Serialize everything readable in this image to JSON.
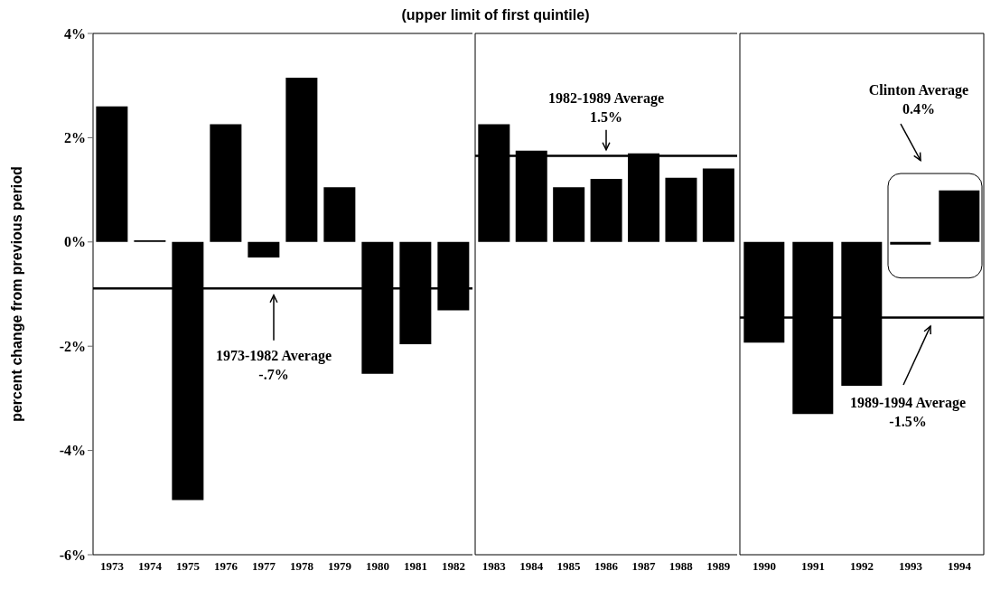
{
  "chart_data": [
    {
      "type": "bar",
      "title": "(upper limit of first quintile)",
      "ylabel": "percent change from previous period",
      "categories": [
        "1973",
        "1974",
        "1975",
        "1976",
        "1977",
        "1978",
        "1979",
        "1980",
        "1981",
        "1982"
      ],
      "values": [
        2.6,
        0.03,
        -4.95,
        2.26,
        -0.3,
        3.15,
        1.05,
        -2.53,
        -1.96,
        -1.31
      ],
      "color": "#000000",
      "ylim": [
        -6,
        4
      ],
      "yticks": [
        {
          "value": -6,
          "label": "-6%"
        },
        {
          "value": -4,
          "label": "-4%"
        },
        {
          "value": -2,
          "label": "-2%"
        },
        {
          "value": 0,
          "label": "0%"
        },
        {
          "value": 2,
          "label": "2%"
        },
        {
          "value": 4,
          "label": "4%"
        }
      ],
      "ref_lines": [
        {
          "axis": "y",
          "value": -0.89,
          "label": "1973-1982 Average\n-.7%"
        }
      ]
    },
    {
      "type": "bar",
      "categories": [
        "1983",
        "1984",
        "1985",
        "1986",
        "1987",
        "1988",
        "1989"
      ],
      "values": [
        2.26,
        1.75,
        1.05,
        1.21,
        1.7,
        1.23,
        1.41
      ],
      "color": "#000000",
      "ylim": [
        -6,
        4
      ],
      "tick_labels": "x",
      "ref_lines": [
        {
          "axis": "y",
          "value": 1.65,
          "label": "1982-1989 Average\n1.5%"
        }
      ]
    },
    {
      "type": "bar",
      "categories": [
        "1990",
        "1991",
        "1992",
        "1993",
        "1994"
      ],
      "values": [
        -1.93,
        -3.3,
        -2.76,
        -0.05,
        0.99
      ],
      "color": "#000000",
      "ylim": [
        -6,
        4
      ],
      "tick_labels": "x",
      "ref_lines": [
        {
          "axis": "y",
          "value": -1.45,
          "label": "1989-1994 Average\n-1.5%"
        }
      ],
      "annotations": [
        "Clinton Average\n0.4%"
      ]
    }
  ]
}
